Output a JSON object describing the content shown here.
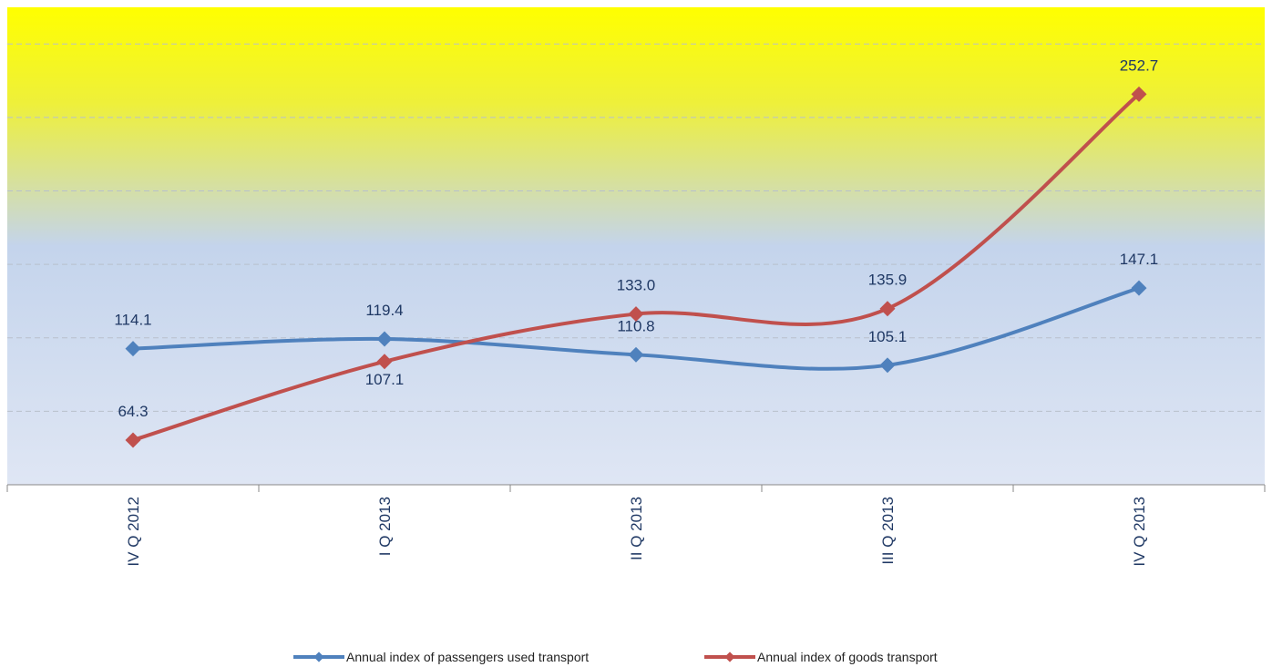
{
  "chart_data": {
    "type": "line",
    "categories": [
      "IV Q 2012",
      "I Q 2013",
      "II Q 2013",
      "III Q 2013",
      "IV Q 2013"
    ],
    "series": [
      {
        "name": "Annual index of passengers used transport",
        "color": "#4f81bd",
        "values": [
          114.1,
          119.4,
          110.8,
          105.1,
          147.1
        ]
      },
      {
        "name": "Annual index of goods transport",
        "color": "#c0504d",
        "values": [
          64.3,
          107.1,
          133.0,
          135.9,
          252.7
        ]
      }
    ],
    "value_labels": [
      [
        "114.1",
        "119.4",
        "110.8",
        "105.1",
        "147.1"
      ],
      [
        "64.3",
        "107.1",
        "133.0",
        "135.9",
        "252.7"
      ]
    ],
    "ylim": [
      40,
      300
    ],
    "yticks": [
      40,
      80,
      120,
      160,
      200,
      240,
      280
    ],
    "grid": true,
    "legend": "bottom"
  }
}
